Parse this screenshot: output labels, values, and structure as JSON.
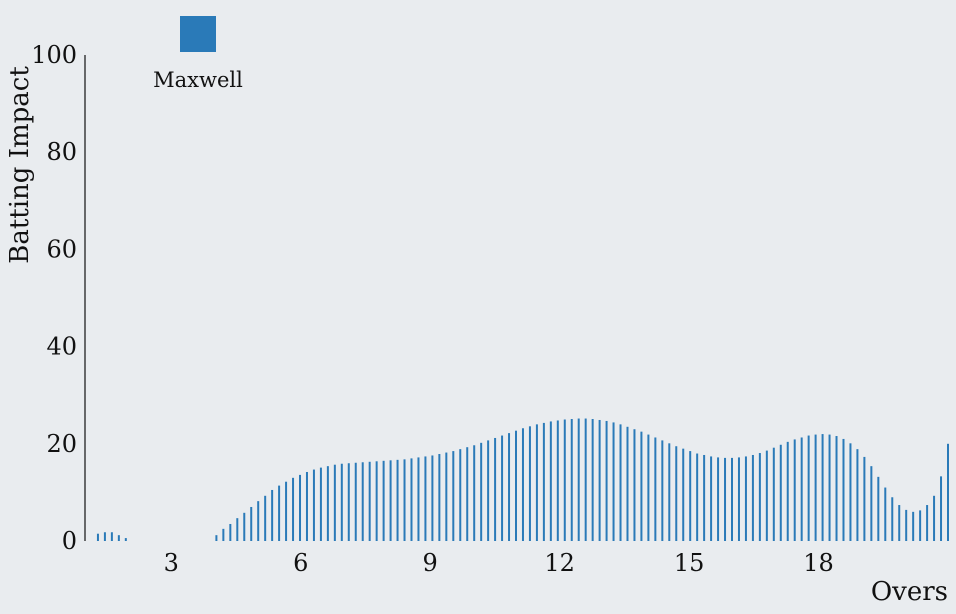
{
  "chart_data": {
    "type": "bar",
    "title": "",
    "xlabel": "Overs",
    "ylabel": "Batting Impact",
    "xlim": [
      1,
      21
    ],
    "ylim": [
      0,
      100
    ],
    "x_ticks": [
      3,
      6,
      9,
      12,
      15,
      18
    ],
    "y_ticks": [
      0,
      20,
      40,
      60,
      80,
      100
    ],
    "grid": false,
    "legend_position": "top-left",
    "color": "#2a7ab8",
    "series": [
      {
        "name": "Maxwell",
        "values": [
          1.5,
          1.8,
          1.8,
          1.2,
          0.6,
          0,
          0,
          0,
          0,
          0,
          0,
          0,
          0,
          0,
          0,
          0,
          0,
          1.2,
          2.5,
          3.5,
          4.7,
          5.8,
          7.0,
          8.2,
          9.3,
          10.5,
          11.4,
          12.2,
          13.0,
          13.6,
          14.2,
          14.7,
          15.1,
          15.4,
          15.7,
          15.9,
          16.0,
          16.1,
          16.2,
          16.3,
          16.4,
          16.5,
          16.6,
          16.7,
          16.8,
          17.0,
          17.2,
          17.4,
          17.6,
          17.9,
          18.2,
          18.5,
          18.9,
          19.3,
          19.7,
          20.2,
          20.7,
          21.2,
          21.7,
          22.2,
          22.7,
          23.2,
          23.6,
          24.0,
          24.3,
          24.6,
          24.8,
          25.0,
          25.1,
          25.2,
          25.2,
          25.1,
          24.9,
          24.7,
          24.4,
          24.0,
          23.5,
          23.0,
          22.5,
          21.9,
          21.3,
          20.7,
          20.1,
          19.5,
          19.0,
          18.5,
          18.0,
          17.7,
          17.4,
          17.2,
          17.1,
          17.1,
          17.2,
          17.4,
          17.7,
          18.1,
          18.6,
          19.2,
          19.8,
          20.4,
          20.9,
          21.3,
          21.7,
          21.9,
          22.0,
          21.9,
          21.6,
          21.0,
          20.1,
          18.9,
          17.3,
          15.4,
          13.2,
          11.0,
          9.0,
          7.4,
          6.4,
          6.0,
          6.3,
          7.4,
          9.3,
          13.3,
          20.0
        ]
      }
    ]
  }
}
